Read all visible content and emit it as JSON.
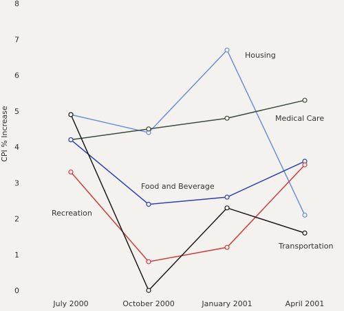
{
  "chart_data": {
    "type": "line",
    "title": "",
    "xlabel": "",
    "ylabel": "CPI % Increase",
    "x": [
      "July 2000",
      "October 2000",
      "January 2001",
      "April 2001"
    ],
    "ylim": [
      0,
      8
    ],
    "yticks": [
      0,
      1,
      2,
      3,
      4,
      5,
      6,
      7,
      8
    ],
    "grid": false,
    "legend": "none (direct labels)",
    "series": [
      {
        "name": "Housing",
        "values": [
          4.9,
          4.4,
          6.7,
          2.1
        ],
        "color": "#6a8fd8"
      },
      {
        "name": "Medical Care",
        "values": [
          4.2,
          4.5,
          4.8,
          5.3
        ],
        "color": "#3a4a3a"
      },
      {
        "name": "Food and Beverage",
        "values": [
          4.2,
          2.4,
          2.6,
          3.6
        ],
        "color": "#2b3fb8"
      },
      {
        "name": "Recreation",
        "values": [
          3.3,
          0.8,
          1.2,
          3.5
        ],
        "color": "#d23a3a"
      },
      {
        "name": "Transportation",
        "values": [
          4.9,
          0.0,
          2.3,
          1.6
        ],
        "color": "#1a1a1a"
      }
    ]
  }
}
